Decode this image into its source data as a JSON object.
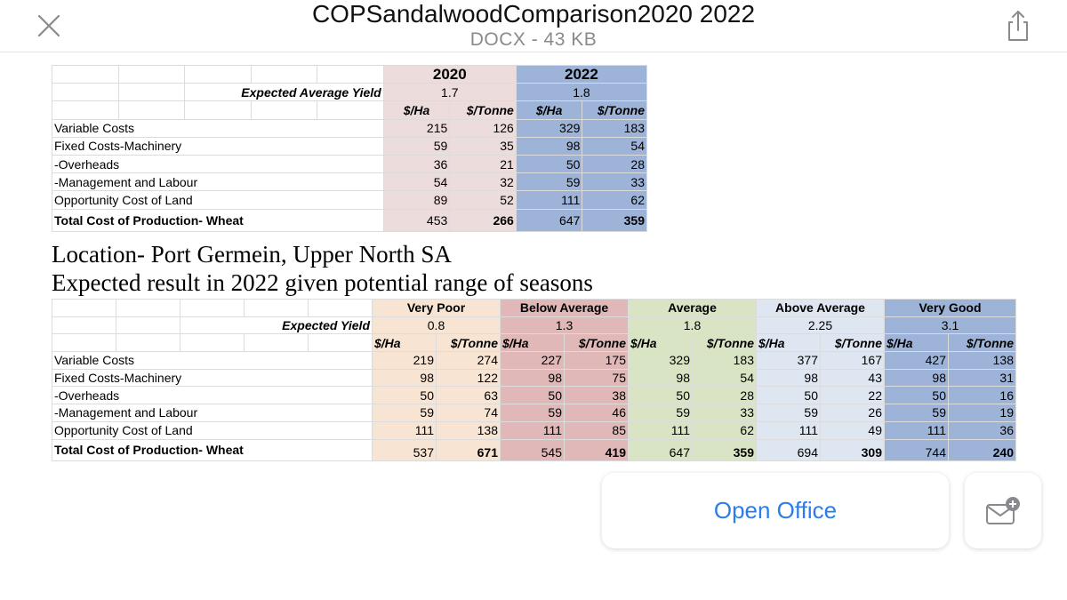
{
  "header": {
    "title": "COPSandalwoodComparison2020 2022",
    "subtitle": "DOCX - 43 KB",
    "close_icon": "close-icon",
    "share_icon": "share-icon"
  },
  "table1": {
    "years": [
      "2020",
      "2022"
    ],
    "yield_label": "Expected Average Yield",
    "yields": [
      "1.7",
      "1.8"
    ],
    "units": [
      "$/Ha",
      "$/Tonne",
      "$/Ha",
      "$/Tonne"
    ],
    "rows": [
      {
        "label": "Variable Costs",
        "values": [
          "215",
          "126",
          "329",
          "183"
        ]
      },
      {
        "label": "Fixed Costs-Machinery",
        "values": [
          "59",
          "35",
          "98",
          "54"
        ]
      },
      {
        "label": "-Overheads",
        "values": [
          "36",
          "21",
          "50",
          "28"
        ]
      },
      {
        "label": "-Management and Labour",
        "values": [
          "54",
          "32",
          "59",
          "33"
        ]
      },
      {
        "label": "Opportunity Cost of Land",
        "values": [
          "89",
          "52",
          "111",
          "62"
        ]
      }
    ],
    "total": {
      "label": "Total Cost of Production- Wheat",
      "values": [
        "453",
        "266",
        "647",
        "359"
      ]
    },
    "colors": {
      "y2020": "#ecdcdc",
      "y2022": "#9db4d8"
    }
  },
  "text": {
    "location": "Location- Port Germein, Upper North SA",
    "expected": "Expected result in 2022 given potential range of seasons"
  },
  "table2": {
    "seasons": [
      "Very Poor",
      "Below Average",
      "Average",
      "Above Average",
      "Very Good"
    ],
    "yield_label": "Expected Yield",
    "yields": [
      "0.8",
      "1.3",
      "1.8",
      "2.25",
      "3.1"
    ],
    "units": [
      "$/Ha",
      "$/Tonne"
    ],
    "rows": [
      {
        "label": "Variable Costs",
        "values": [
          "219",
          "274",
          "227",
          "175",
          "329",
          "183",
          "377",
          "167",
          "427",
          "138"
        ]
      },
      {
        "label": "Fixed Costs-Machinery",
        "values": [
          "98",
          "122",
          "98",
          "75",
          "98",
          "54",
          "98",
          "43",
          "98",
          "31"
        ]
      },
      {
        "label": "-Overheads",
        "values": [
          "50",
          "63",
          "50",
          "38",
          "50",
          "28",
          "50",
          "22",
          "50",
          "16"
        ]
      },
      {
        "label": "-Management and Labour",
        "values": [
          "59",
          "74",
          "59",
          "46",
          "59",
          "33",
          "59",
          "26",
          "59",
          "19"
        ]
      },
      {
        "label": "Opportunity Cost of Land",
        "values": [
          "111",
          "138",
          "111",
          "85",
          "111",
          "62",
          "111",
          "49",
          "111",
          "36"
        ]
      }
    ],
    "total": {
      "label": "Total Cost of Production- Wheat",
      "values": [
        "537",
        "671",
        "545",
        "419",
        "647",
        "359",
        "694",
        "309",
        "744",
        "240"
      ]
    },
    "colors": [
      "#f8e4d2",
      "#e0b8b8",
      "#d8e4c4",
      "#dde6f1",
      "#9db4d8"
    ]
  },
  "actions": {
    "open_label": "Open Office",
    "mail_icon": "mail-add-icon"
  }
}
